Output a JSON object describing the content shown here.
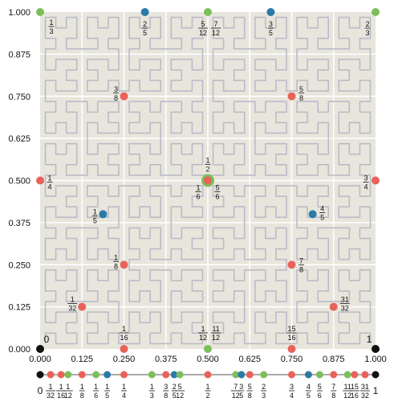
{
  "chart_data": {
    "type": "scatter",
    "x_ticks": [
      "0.000",
      "0.125",
      "0.250",
      "0.375",
      "0.500",
      "0.625",
      "0.750",
      "0.875",
      "1.000"
    ],
    "y_ticks": [
      "0.000",
      "0.125",
      "0.250",
      "0.375",
      "0.500",
      "0.625",
      "0.750",
      "0.875",
      "1.000"
    ],
    "xlim": [
      0,
      1
    ],
    "ylim": [
      0,
      1
    ],
    "grid": true,
    "colors": {
      "background": "#e8e5dc",
      "grid": "#ffffff",
      "curve": "#b9bcc8",
      "red": "#e8625a",
      "green": "#7cbf5a",
      "blue": "#2a7aa8",
      "black": "#111111"
    },
    "corner_labels": [
      {
        "text": "0",
        "x": 0,
        "y": 0
      },
      {
        "text": "1",
        "x": 1,
        "y": 0
      }
    ],
    "points": [
      {
        "x": 0.0,
        "y": 1.0,
        "color": "green",
        "label": [
          "1",
          "3"
        ]
      },
      {
        "x": 0.3125,
        "y": 1.0,
        "color": "blue",
        "label": [
          "2",
          "5"
        ]
      },
      {
        "x": 0.5,
        "y": 1.0,
        "color": "green",
        "label": [
          "5",
          "12"
        ]
      },
      {
        "x": 0.5,
        "y": 1.0,
        "color": "green",
        "label": [
          "7",
          "12"
        ]
      },
      {
        "x": 0.6875,
        "y": 1.0,
        "color": "blue",
        "label": [
          "3",
          "5"
        ]
      },
      {
        "x": 1.0,
        "y": 1.0,
        "color": "green",
        "label": [
          "2",
          "3"
        ]
      },
      {
        "x": 0.25,
        "y": 0.75,
        "color": "red",
        "label": [
          "3",
          "8"
        ]
      },
      {
        "x": 0.75,
        "y": 0.75,
        "color": "red",
        "label": [
          "5",
          "8"
        ]
      },
      {
        "x": 0.0,
        "y": 0.5,
        "color": "red",
        "label": [
          "1",
          "4"
        ]
      },
      {
        "x": 0.5,
        "y": 0.5,
        "color": "green",
        "label": [
          "1",
          "2"
        ]
      },
      {
        "x": 0.5,
        "y": 0.5,
        "color": "red",
        "label": [
          "1",
          "6"
        ]
      },
      {
        "x": 0.5,
        "y": 0.5,
        "color": "red",
        "label": [
          "5",
          "6"
        ]
      },
      {
        "x": 1.0,
        "y": 0.5,
        "color": "red",
        "label": [
          "3",
          "4"
        ]
      },
      {
        "x": 0.1875,
        "y": 0.4,
        "color": "blue",
        "label": [
          "1",
          "5"
        ]
      },
      {
        "x": 0.8125,
        "y": 0.4,
        "color": "blue",
        "label": [
          "4",
          "5"
        ]
      },
      {
        "x": 0.25,
        "y": 0.25,
        "color": "red",
        "label": [
          "1",
          "8"
        ]
      },
      {
        "x": 0.75,
        "y": 0.25,
        "color": "red",
        "label": [
          "7",
          "8"
        ]
      },
      {
        "x": 0.125,
        "y": 0.125,
        "color": "red",
        "label": [
          "1",
          "32"
        ]
      },
      {
        "x": 0.875,
        "y": 0.125,
        "color": "red",
        "label": [
          "31",
          "32"
        ]
      },
      {
        "x": 0.0,
        "y": 0.0,
        "color": "black",
        "label": null
      },
      {
        "x": 0.25,
        "y": 0.0,
        "color": "red",
        "label": [
          "1",
          "16"
        ]
      },
      {
        "x": 0.5,
        "y": 0.0,
        "color": "green",
        "label": [
          "1",
          "12"
        ]
      },
      {
        "x": 0.5,
        "y": 0.0,
        "color": "green",
        "label": [
          "11",
          "12"
        ]
      },
      {
        "x": 0.75,
        "y": 0.0,
        "color": "red",
        "label": [
          "15",
          "16"
        ]
      },
      {
        "x": 1.0,
        "y": 0.0,
        "color": "black",
        "label": null
      }
    ],
    "number_line": [
      {
        "v": 0,
        "color": "black",
        "label": [
          "0"
        ]
      },
      {
        "v": 0.03125,
        "color": "red",
        "label": [
          "1",
          "32"
        ]
      },
      {
        "v": 0.0625,
        "color": "red",
        "label": [
          "1",
          "16"
        ]
      },
      {
        "v": 0.0833,
        "color": "green",
        "label": [
          "1",
          "12"
        ]
      },
      {
        "v": 0.125,
        "color": "red",
        "label": [
          "1",
          "8"
        ]
      },
      {
        "v": 0.1667,
        "color": "green",
        "label": [
          "1",
          "6"
        ]
      },
      {
        "v": 0.2,
        "color": "blue",
        "label": [
          "1",
          "5"
        ]
      },
      {
        "v": 0.25,
        "color": "red",
        "label": [
          "1",
          "4"
        ]
      },
      {
        "v": 0.3333,
        "color": "green",
        "label": [
          "1",
          "3"
        ]
      },
      {
        "v": 0.375,
        "color": "red",
        "label": [
          "3",
          "8"
        ]
      },
      {
        "v": 0.4,
        "color": "blue",
        "label": [
          "2",
          "5"
        ]
      },
      {
        "v": 0.4167,
        "color": "green",
        "label": [
          "5",
          "12"
        ]
      },
      {
        "v": 0.5,
        "color": "red",
        "label": [
          "1",
          "2"
        ]
      },
      {
        "v": 0.5833,
        "color": "green",
        "label": [
          "7",
          "12"
        ]
      },
      {
        "v": 0.6,
        "color": "blue",
        "label": [
          "3",
          "5"
        ]
      },
      {
        "v": 0.625,
        "color": "red",
        "label": [
          "5",
          "8"
        ]
      },
      {
        "v": 0.6667,
        "color": "green",
        "label": [
          "2",
          "3"
        ]
      },
      {
        "v": 0.75,
        "color": "red",
        "label": [
          "3",
          "4"
        ]
      },
      {
        "v": 0.8,
        "color": "blue",
        "label": [
          "4",
          "5"
        ]
      },
      {
        "v": 0.8333,
        "color": "green",
        "label": [
          "5",
          "6"
        ]
      },
      {
        "v": 0.875,
        "color": "red",
        "label": [
          "7",
          "8"
        ]
      },
      {
        "v": 0.9167,
        "color": "green",
        "label": [
          "11",
          "12"
        ]
      },
      {
        "v": 0.9375,
        "color": "red",
        "label": [
          "15",
          "16"
        ]
      },
      {
        "v": 0.96875,
        "color": "red",
        "label": [
          "31",
          "32"
        ]
      },
      {
        "v": 1,
        "color": "black",
        "label": [
          "1"
        ]
      }
    ]
  }
}
